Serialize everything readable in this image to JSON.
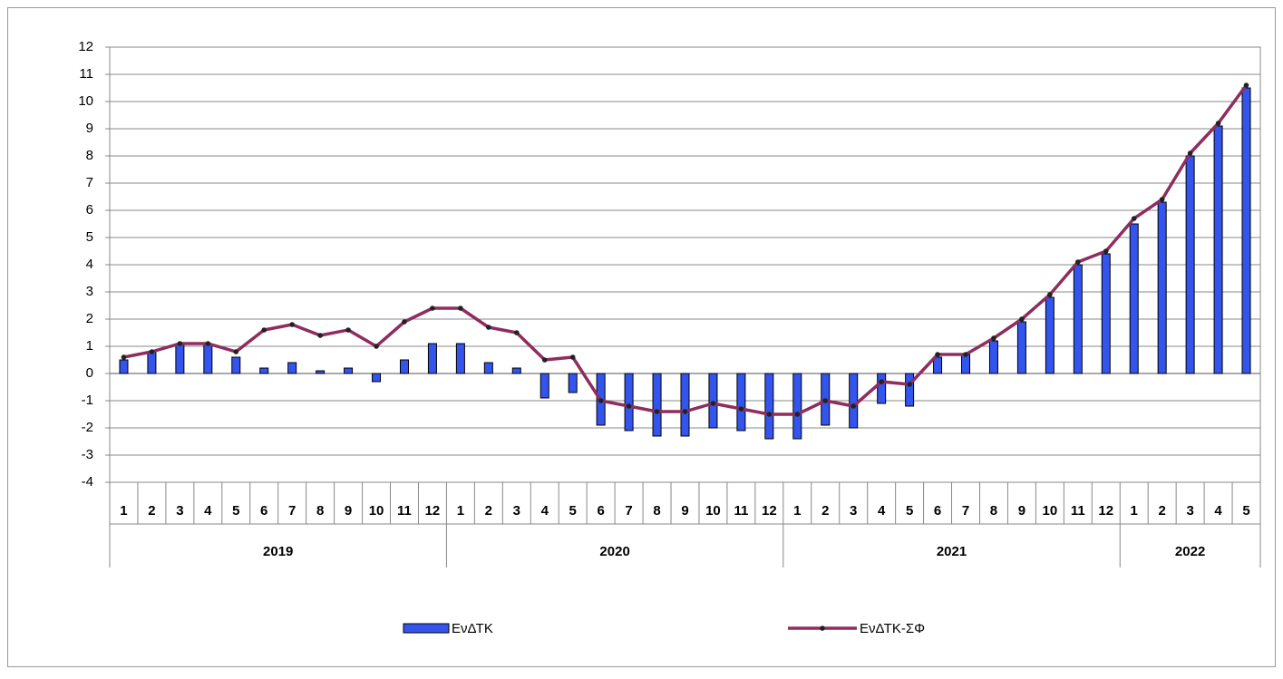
{
  "chart_data": {
    "type": "bar-line",
    "groups": [
      {
        "name": "2019",
        "categories": [
          "1",
          "2",
          "3",
          "4",
          "5",
          "6",
          "7",
          "8",
          "9",
          "10",
          "11",
          "12"
        ]
      },
      {
        "name": "2020",
        "categories": [
          "1",
          "2",
          "3",
          "4",
          "5",
          "6",
          "7",
          "8",
          "9",
          "10",
          "11",
          "12"
        ]
      },
      {
        "name": "2021",
        "categories": [
          "1",
          "2",
          "3",
          "4",
          "5",
          "6",
          "7",
          "8",
          "9",
          "10",
          "11",
          "12"
        ]
      },
      {
        "name": "2022",
        "categories": [
          "1",
          "2",
          "3",
          "4",
          "5"
        ]
      }
    ],
    "series": [
      {
        "name": "ΕνΔΤΚ",
        "type": "bar",
        "color": "#3355ee",
        "values": [
          0.5,
          0.8,
          1.1,
          1.1,
          0.6,
          0.2,
          0.4,
          0.1,
          0.2,
          -0.3,
          0.5,
          1.1,
          1.1,
          0.4,
          0.2,
          -0.9,
          -0.7,
          -1.9,
          -2.1,
          -2.3,
          -2.3,
          -2.0,
          -2.1,
          -2.4,
          -2.4,
          -1.9,
          -2.0,
          -1.1,
          -1.2,
          0.6,
          0.7,
          1.2,
          1.9,
          2.8,
          4.0,
          4.4,
          5.5,
          6.3,
          8.0,
          9.1,
          10.5
        ]
      },
      {
        "name": "ΕνΔΤΚ-ΣΦ",
        "type": "line",
        "color": "#8e2d5e",
        "values": [
          0.6,
          0.8,
          1.1,
          1.1,
          0.8,
          1.6,
          1.8,
          1.4,
          1.6,
          1.0,
          1.9,
          2.4,
          2.4,
          1.7,
          1.5,
          0.5,
          0.6,
          -1.0,
          -1.2,
          -1.4,
          -1.4,
          -1.1,
          -1.3,
          -1.5,
          -1.5,
          -1.0,
          -1.2,
          -0.3,
          -0.4,
          0.7,
          0.7,
          1.3,
          2.0,
          2.9,
          4.1,
          4.5,
          5.7,
          6.4,
          8.1,
          9.2,
          10.6
        ]
      }
    ],
    "ylim": [
      -4,
      12
    ],
    "yticks": [
      -4,
      -3,
      -2,
      -1,
      0,
      1,
      2,
      3,
      4,
      5,
      6,
      7,
      8,
      9,
      10,
      11,
      12
    ],
    "grid": true,
    "legend": "bottom"
  }
}
